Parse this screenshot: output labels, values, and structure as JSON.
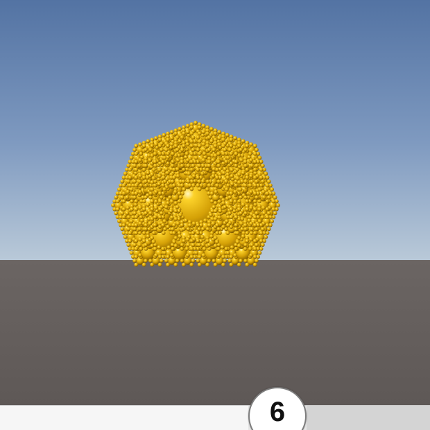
{
  "scene": {
    "name": "fractal-spheres-viewport",
    "colors": {
      "sky_top": "#5877a6",
      "sky_horizon": "#b5c6d6",
      "ground": "#5f5957",
      "sphere_base": "#d8a408",
      "sphere_highlight": "#fff6c0",
      "sphere_shadow": "#6b4a00"
    }
  },
  "depth_slider": {
    "value": "6",
    "fraction": 0.645,
    "icon": "slider-handle"
  }
}
